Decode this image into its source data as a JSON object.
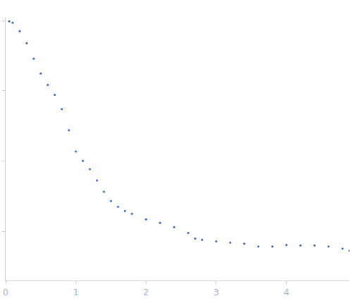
{
  "chart_data": {
    "type": "scatter",
    "x": [
      0.05,
      0.1,
      0.2,
      0.3,
      0.4,
      0.5,
      0.6,
      0.7,
      0.8,
      0.9,
      1.0,
      1.1,
      1.2,
      1.3,
      1.4,
      1.5,
      1.6,
      1.7,
      1.8,
      2.0,
      2.2,
      2.4,
      2.6,
      2.7,
      2.8,
      3.0,
      3.2,
      3.4,
      3.6,
      3.8,
      4.0,
      4.2,
      4.4,
      4.6,
      4.8,
      4.9
    ],
    "values": [
      0.977,
      0.933,
      0.706,
      0.476,
      0.286,
      0.176,
      0.121,
      0.0877,
      0.0551,
      0.0275,
      0.0137,
      0.0101,
      0.00768,
      0.0053,
      0.00366,
      0.0027,
      0.00225,
      0.00195,
      0.00178,
      0.00148,
      0.00132,
      0.00115,
      0.00095,
      0.00079,
      0.00076,
      0.00072,
      0.00069,
      0.00067,
      0.00061,
      0.00061,
      0.00064,
      0.00063,
      0.00063,
      0.00061,
      0.00057,
      0.00053
    ],
    "color": "#3a64b4",
    "marker": "circle",
    "log": "y",
    "xlim": [
      0,
      4.9
    ],
    "xticks": [
      0,
      1,
      2,
      3,
      4
    ],
    "ylim": [
      0.0002,
      1.1
    ],
    "yticks": [
      0.001,
      0.01,
      0.1,
      1
    ],
    "tick_labels": "x",
    "grid": false
  }
}
